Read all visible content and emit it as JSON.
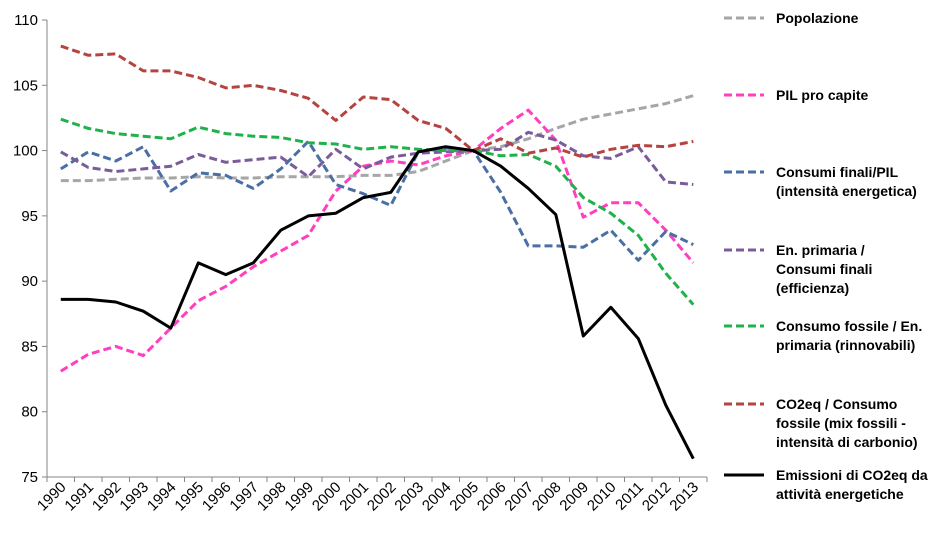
{
  "chart_data": {
    "type": "line",
    "title": "",
    "xlabel": "",
    "ylabel": "",
    "ylim": [
      75,
      110
    ],
    "yticks": [
      75,
      80,
      85,
      90,
      95,
      100,
      105,
      110
    ],
    "grid": false,
    "legend_position": "right",
    "categories": [
      "1990",
      "1991",
      "1992",
      "1993",
      "1994",
      "1995",
      "1996",
      "1997",
      "1998",
      "1999",
      "2000",
      "2001",
      "2002",
      "2003",
      "2004",
      "2005",
      "2006",
      "2007",
      "2008",
      "2009",
      "2010",
      "2011",
      "2012",
      "2013"
    ],
    "series": [
      {
        "name": "Popolazione",
        "legend_lines": [
          "Popolazione"
        ],
        "color": "#a6a6a6",
        "dashed": true,
        "values": [
          97.7,
          97.7,
          97.8,
          97.9,
          97.9,
          98.0,
          97.9,
          97.9,
          98.0,
          98.0,
          98.0,
          98.1,
          98.1,
          98.4,
          99.2,
          100.0,
          100.3,
          100.9,
          101.7,
          102.4,
          102.8,
          103.2,
          103.6,
          104.2
        ]
      },
      {
        "name": "PIL pro capite",
        "legend_lines": [
          "PIL pro capite"
        ],
        "color": "#ff3fbf",
        "dashed": true,
        "values": [
          83.1,
          84.4,
          85.0,
          84.3,
          86.4,
          88.5,
          89.6,
          91.1,
          92.3,
          93.5,
          96.9,
          98.8,
          99.2,
          98.9,
          99.6,
          100.0,
          101.7,
          103.1,
          100.8,
          94.9,
          96.0,
          96.0,
          93.9,
          91.4
        ]
      },
      {
        "name": "Consumi finali/PIL (intensità energetica)",
        "legend_lines": [
          "Consumi finali/PIL",
          "(intensità energetica)"
        ],
        "color": "#4a6fa5",
        "dashed": true,
        "values": [
          98.6,
          99.9,
          99.2,
          100.3,
          96.9,
          98.3,
          98.1,
          97.1,
          98.6,
          100.7,
          97.4,
          96.7,
          95.8,
          99.9,
          100.2,
          100.0,
          96.8,
          92.7,
          92.7,
          92.6,
          93.9,
          91.6,
          93.8,
          92.8
        ]
      },
      {
        "name": "En. primaria / Consumi finali (efficienza)",
        "legend_lines": [
          "En. primaria /",
          "Consumi finali",
          "(efficienza)"
        ],
        "color": "#7a5c9a",
        "dashed": true,
        "values": [
          99.9,
          98.7,
          98.4,
          98.6,
          98.8,
          99.7,
          99.1,
          99.3,
          99.5,
          98.0,
          100.1,
          98.6,
          99.5,
          99.8,
          99.9,
          100.0,
          100.1,
          101.4,
          100.8,
          99.6,
          99.4,
          100.3,
          97.6,
          97.4
        ]
      },
      {
        "name": "Consumo fossile / En. primaria (rinnovabili)",
        "legend_lines": [
          "Consumo fossile / En.",
          "primaria (rinnovabili)"
        ],
        "color": "#1fb24a",
        "dashed": true,
        "values": [
          102.4,
          101.7,
          101.3,
          101.1,
          100.9,
          101.8,
          101.3,
          101.1,
          101.0,
          100.6,
          100.5,
          100.1,
          100.3,
          100.1,
          100.0,
          100.0,
          99.6,
          99.7,
          98.8,
          96.4,
          95.2,
          93.5,
          90.6,
          88.2
        ]
      },
      {
        "name": "CO2eq / Consumo fossile (mix fossili - intensità di carbonio)",
        "legend_lines": [
          "CO2eq / Consumo",
          "fossile (mix fossili -",
          "intensità di carbonio)"
        ],
        "color": "#b5433f",
        "dashed": true,
        "values": [
          108.0,
          107.3,
          107.4,
          106.1,
          106.1,
          105.6,
          104.8,
          105.0,
          104.6,
          104.0,
          102.3,
          104.1,
          103.9,
          102.3,
          101.7,
          100.0,
          100.9,
          99.8,
          100.2,
          99.5,
          100.1,
          100.4,
          100.3,
          100.7
        ]
      },
      {
        "name": "Emissioni di CO2eq da attività energetiche",
        "legend_lines": [
          "Emissioni di CO2eq da",
          "attività energetiche"
        ],
        "color": "#000000",
        "dashed": false,
        "values": [
          88.6,
          88.6,
          88.4,
          87.7,
          86.4,
          91.4,
          90.5,
          91.4,
          93.9,
          95.0,
          95.2,
          96.4,
          96.8,
          99.9,
          100.3,
          100.0,
          98.8,
          97.1,
          95.1,
          85.8,
          88.0,
          85.6,
          80.5,
          76.4
        ]
      }
    ]
  }
}
